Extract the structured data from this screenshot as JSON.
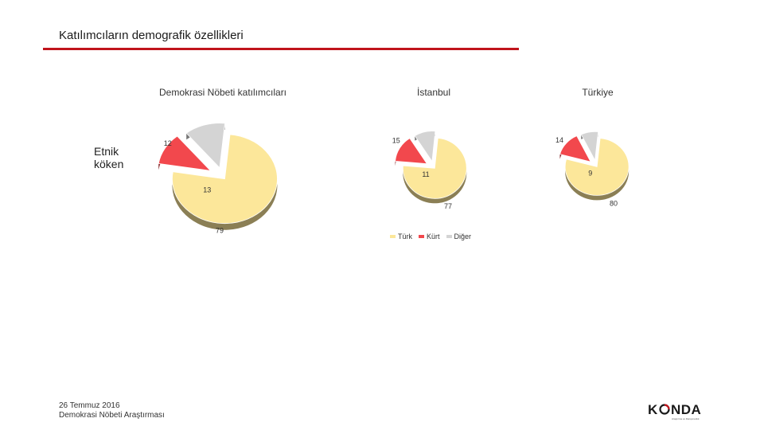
{
  "page": {
    "title": "Katılımcıların demografik özellikleri",
    "row_label_line1": "Etnik",
    "row_label_line2": "köken"
  },
  "colors": {
    "title_rule": "#c0141c",
    "turk": "#fce79a",
    "kurt": "#f2484d",
    "diger": "#d4d4d4"
  },
  "footer": {
    "date": "26 Temmuz 2016",
    "survey": "Demokrasi Nöbeti Araştırması"
  },
  "logo": {
    "text_left": "K",
    "text_right": "NDA",
    "subtitle": "Araştırma ve Danışmanlık",
    "icon": "konda-logo-o-icon"
  },
  "legend": [
    {
      "label": "Türk",
      "color": "#fce79a"
    },
    {
      "label": "Kürt",
      "color": "#f2484d"
    },
    {
      "label": "Diğer",
      "color": "#d4d4d4"
    }
  ],
  "chart_data": [
    {
      "type": "pie",
      "title": "Demokrasi Nöbeti katılımcıları",
      "categories": [
        "Türk",
        "Kürt",
        "Diğer"
      ],
      "values": [
        79,
        12,
        13
      ]
    },
    {
      "type": "pie",
      "title": "İstanbul",
      "categories": [
        "Türk",
        "Kürt",
        "Diğer"
      ],
      "values": [
        77,
        15,
        11
      ]
    },
    {
      "type": "pie",
      "title": "Türkiye",
      "categories": [
        "Türk",
        "Kürt",
        "Diğer"
      ],
      "values": [
        80,
        14,
        9
      ]
    }
  ]
}
